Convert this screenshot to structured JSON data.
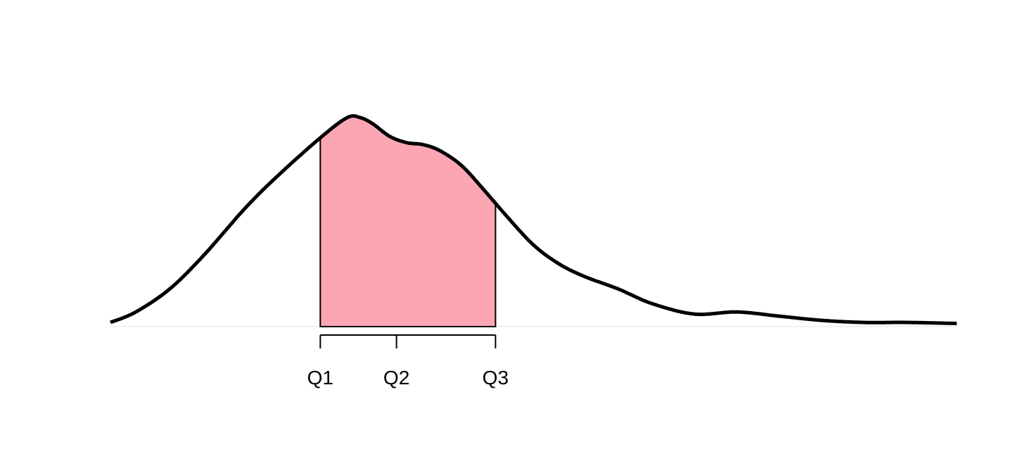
{
  "chart_data": {
    "type": "area",
    "title": "",
    "xlabel": "",
    "ylabel": "",
    "grid": false,
    "legend": "none",
    "xlim": [
      0,
      100
    ],
    "ylim": [
      0,
      1
    ],
    "density_curve": {
      "x": [
        0,
        3,
        7,
        11,
        16,
        20,
        25,
        28,
        29.5,
        31,
        33,
        35,
        37,
        39,
        41.5,
        44,
        47,
        50,
        53,
        56,
        60,
        64,
        69,
        74,
        79,
        84,
        89,
        94,
        100
      ],
      "y": [
        0.02,
        0.07,
        0.18,
        0.34,
        0.57,
        0.73,
        0.91,
        1.0,
        1.0,
        0.97,
        0.91,
        0.88,
        0.87,
        0.84,
        0.77,
        0.66,
        0.52,
        0.39,
        0.3,
        0.24,
        0.18,
        0.11,
        0.06,
        0.07,
        0.05,
        0.03,
        0.02,
        0.02,
        0.015
      ]
    },
    "quartiles": [
      {
        "label": "Q1",
        "x": 24.8
      },
      {
        "label": "Q2",
        "x": 33.8
      },
      {
        "label": "Q3",
        "x": 45.5
      }
    ],
    "shaded_range": {
      "from": "Q1",
      "to": "Q3",
      "color": "#fca5b3"
    },
    "curve_color": "#000000"
  }
}
